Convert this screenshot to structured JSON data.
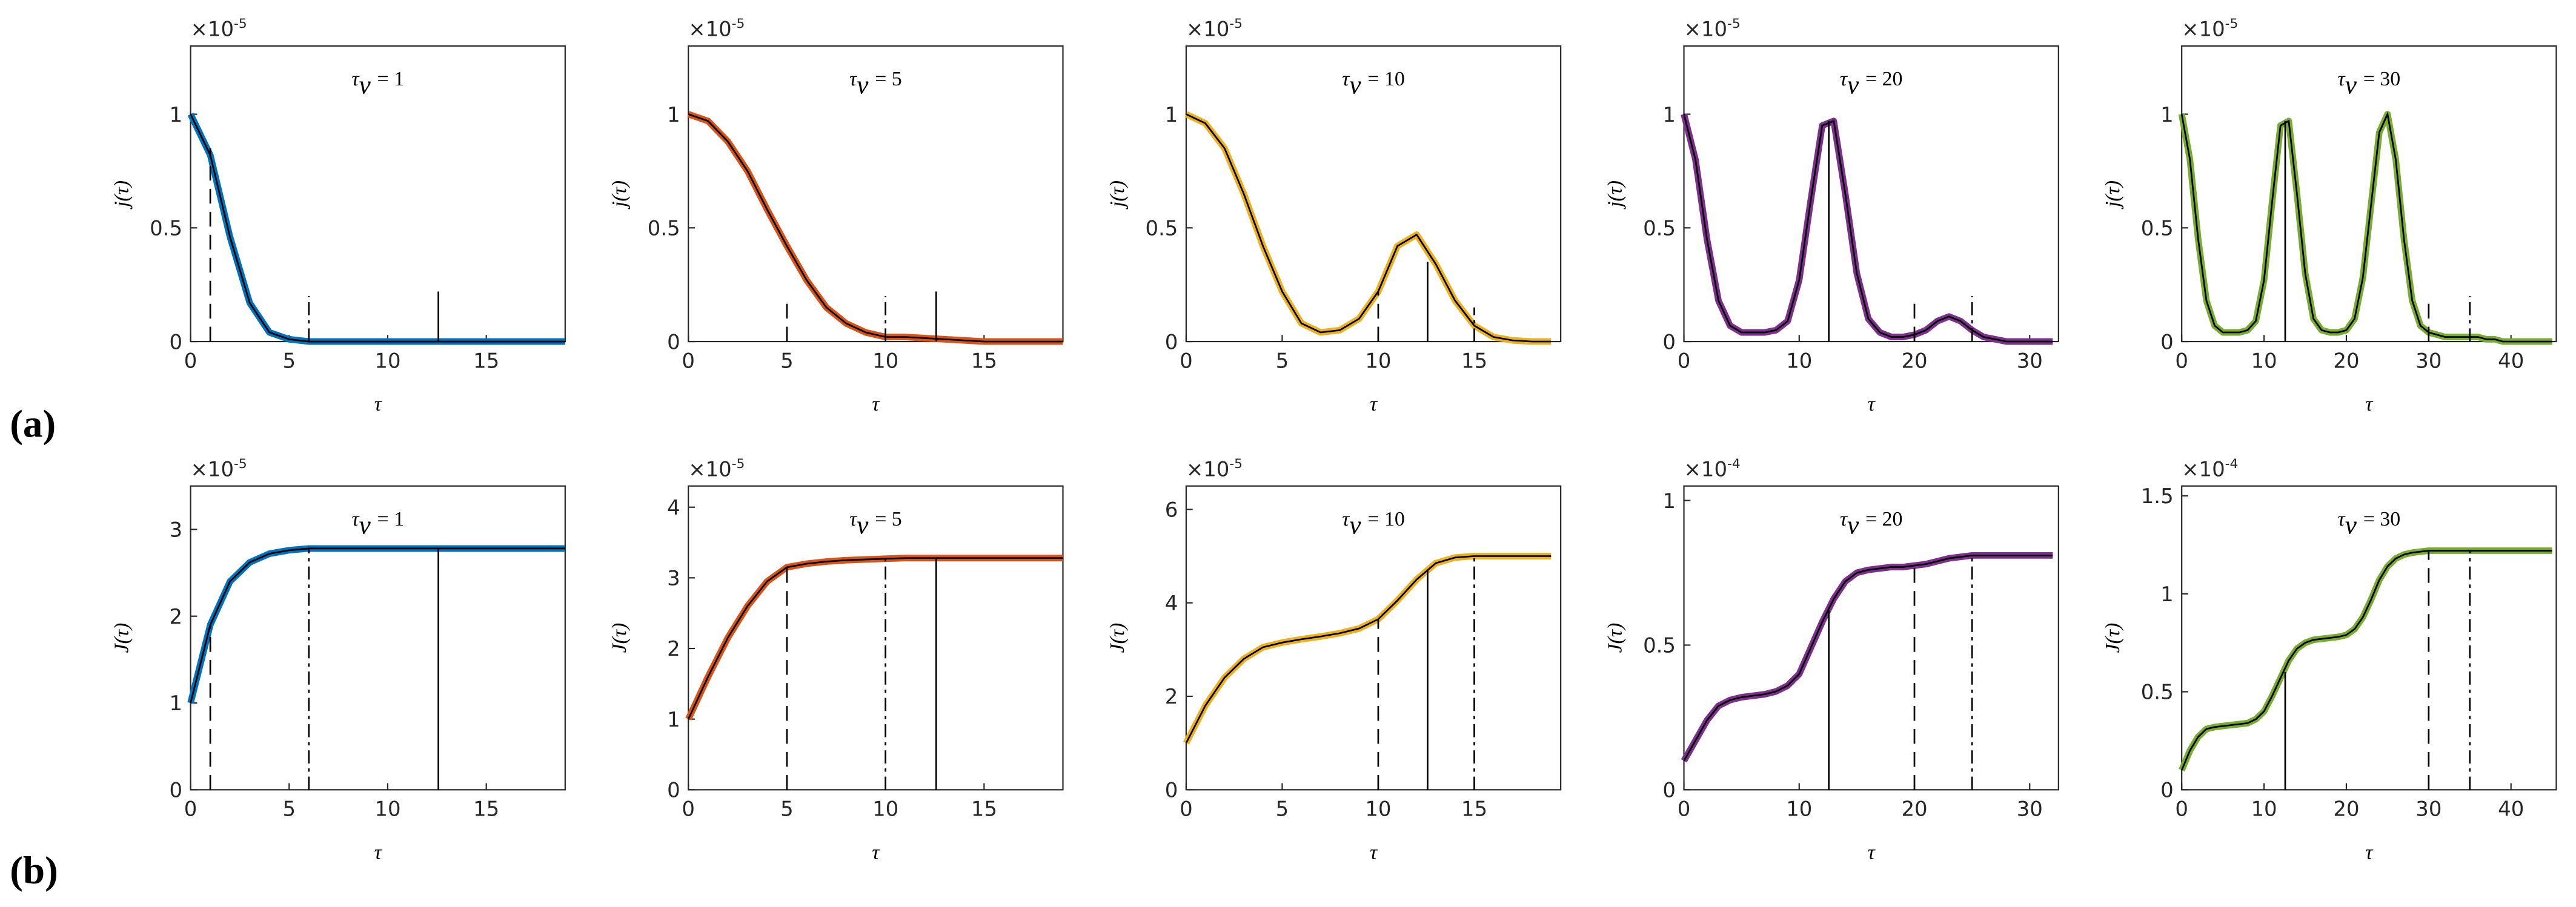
{
  "panel_labels": [
    "(a)",
    "(b)"
  ],
  "chart_data": [
    {
      "type": "line",
      "title_symbol": "τ",
      "title_subscript": "v",
      "title_value": "= 1",
      "xlabel": "τ",
      "ylabel": "j(τ)",
      "y_multiplier": "×10",
      "y_exponent": "-5",
      "xlim": [
        0,
        19
      ],
      "xticks": [
        0,
        5,
        10,
        15
      ],
      "ylim": [
        0,
        1.3
      ],
      "yticks": [
        0,
        0.5,
        1
      ],
      "x": [
        0,
        1,
        2,
        3,
        4,
        5,
        6,
        7,
        8,
        9,
        10,
        11,
        12,
        13,
        14,
        15,
        16,
        17,
        18,
        19
      ],
      "series": [
        {
          "color": "#0072bd",
          "outline_color": "#000000",
          "values": [
            1,
            0.82,
            0.46,
            0.17,
            0.04,
            0.01,
            0,
            0,
            0,
            0,
            0,
            0,
            0,
            0,
            0,
            0,
            0,
            0,
            0,
            0
          ]
        }
      ],
      "markers": [
        {
          "x": 1,
          "top": 0.85,
          "style": "dashed"
        },
        {
          "x": 6,
          "top": 0.2,
          "style": "dashdot"
        },
        {
          "x": 12.57,
          "top": 0.22,
          "style": "solid"
        }
      ]
    },
    {
      "type": "line",
      "title_symbol": "τ",
      "title_subscript": "v",
      "title_value": "= 5",
      "xlabel": "τ",
      "ylabel": "j(τ)",
      "y_multiplier": "×10",
      "y_exponent": "-5",
      "xlim": [
        0,
        19
      ],
      "xticks": [
        0,
        5,
        10,
        15
      ],
      "ylim": [
        0,
        1.3
      ],
      "yticks": [
        0,
        0.5,
        1
      ],
      "x": [
        0,
        1,
        2,
        3,
        4,
        5,
        6,
        7,
        8,
        9,
        10,
        11,
        12,
        13,
        14,
        15,
        16,
        17,
        18,
        19
      ],
      "series": [
        {
          "color": "#d95319",
          "outline_color": "#000000",
          "values": [
            1,
            0.97,
            0.88,
            0.75,
            0.58,
            0.42,
            0.27,
            0.15,
            0.08,
            0.04,
            0.02,
            0.02,
            0.015,
            0.01,
            0.005,
            0,
            0,
            0,
            0,
            0
          ]
        }
      ],
      "markers": [
        {
          "x": 5,
          "top": 0.2,
          "style": "dashed"
        },
        {
          "x": 10,
          "top": 0.2,
          "style": "dashdot"
        },
        {
          "x": 12.57,
          "top": 0.22,
          "style": "solid"
        }
      ]
    },
    {
      "type": "line",
      "title_symbol": "τ",
      "title_subscript": "v",
      "title_value": "= 10",
      "xlabel": "τ",
      "ylabel": "j(τ)",
      "y_multiplier": "×10",
      "y_exponent": "-5",
      "xlim": [
        0,
        19.5
      ],
      "xticks": [
        0,
        5,
        10,
        15
      ],
      "ylim": [
        0,
        1.3
      ],
      "yticks": [
        0,
        0.5,
        1
      ],
      "x": [
        0,
        1,
        2,
        3,
        4,
        5,
        6,
        7,
        8,
        9,
        10,
        11,
        12,
        13,
        14,
        15,
        16,
        17,
        18,
        19
      ],
      "series": [
        {
          "color": "#edb120",
          "outline_color": "#000000",
          "values": [
            1,
            0.96,
            0.85,
            0.65,
            0.42,
            0.22,
            0.08,
            0.04,
            0.05,
            0.1,
            0.22,
            0.42,
            0.47,
            0.34,
            0.18,
            0.07,
            0.02,
            0.005,
            0,
            0
          ]
        }
      ],
      "markers": [
        {
          "x": 10,
          "top": 0.22,
          "style": "dashed"
        },
        {
          "x": 12.57,
          "top": 0.35,
          "style": "solid"
        },
        {
          "x": 15,
          "top": 0.15,
          "style": "dashdot"
        }
      ]
    },
    {
      "type": "line",
      "title_symbol": "τ",
      "title_subscript": "v",
      "title_value": "= 20",
      "xlabel": "τ",
      "ylabel": "j(τ)",
      "y_multiplier": "×10",
      "y_exponent": "-5",
      "xlim": [
        0,
        32.5
      ],
      "xticks": [
        0,
        10,
        20,
        30
      ],
      "ylim": [
        0,
        1.3
      ],
      "yticks": [
        0,
        0.5,
        1
      ],
      "x": [
        0,
        1,
        2,
        3,
        4,
        5,
        6,
        7,
        8,
        9,
        10,
        11,
        12,
        13,
        14,
        15,
        16,
        17,
        18,
        19,
        20,
        21,
        22,
        23,
        24,
        25,
        26,
        27,
        28,
        29,
        30,
        31,
        32
      ],
      "series": [
        {
          "color": "#7e2f8e",
          "outline_color": "#000000",
          "values": [
            1,
            0.8,
            0.45,
            0.18,
            0.07,
            0.04,
            0.04,
            0.04,
            0.05,
            0.09,
            0.27,
            0.62,
            0.95,
            0.97,
            0.65,
            0.3,
            0.1,
            0.04,
            0.02,
            0.02,
            0.03,
            0.05,
            0.09,
            0.11,
            0.09,
            0.05,
            0.02,
            0.01,
            0,
            0,
            0,
            0,
            0
          ]
        }
      ],
      "markers": [
        {
          "x": 12.57,
          "top": 0.97,
          "style": "solid"
        },
        {
          "x": 20,
          "top": 0.2,
          "style": "dashed"
        },
        {
          "x": 25,
          "top": 0.2,
          "style": "dashdot"
        }
      ]
    },
    {
      "type": "line",
      "title_symbol": "τ",
      "title_subscript": "v",
      "title_value": "= 30",
      "xlabel": "τ",
      "ylabel": "j(τ)",
      "y_multiplier": "×10",
      "y_exponent": "-5",
      "xlim": [
        0,
        45.5
      ],
      "xticks": [
        0,
        10,
        20,
        30,
        40
      ],
      "ylim": [
        0,
        1.3
      ],
      "yticks": [
        0,
        0.5,
        1
      ],
      "x": [
        0,
        1,
        2,
        3,
        4,
        5,
        6,
        7,
        8,
        9,
        10,
        11,
        12,
        13,
        14,
        15,
        16,
        17,
        18,
        19,
        20,
        21,
        22,
        23,
        24,
        25,
        26,
        27,
        28,
        29,
        30,
        31,
        32,
        33,
        34,
        35,
        36,
        37,
        38,
        39,
        40,
        41,
        42,
        43,
        44,
        45
      ],
      "series": [
        {
          "color": "#77ac30",
          "outline_color": "#000000",
          "values": [
            1,
            0.8,
            0.45,
            0.18,
            0.07,
            0.04,
            0.04,
            0.04,
            0.05,
            0.09,
            0.27,
            0.62,
            0.95,
            0.97,
            0.65,
            0.3,
            0.1,
            0.05,
            0.04,
            0.04,
            0.05,
            0.1,
            0.28,
            0.6,
            0.92,
            1,
            0.8,
            0.45,
            0.18,
            0.07,
            0.04,
            0.03,
            0.02,
            0.02,
            0.02,
            0.02,
            0.02,
            0.01,
            0.01,
            0,
            0,
            0,
            0,
            0,
            0,
            0
          ]
        }
      ],
      "markers": [
        {
          "x": 12.57,
          "top": 0.97,
          "style": "solid"
        },
        {
          "x": 30,
          "top": 0.2,
          "style": "dashed"
        },
        {
          "x": 35,
          "top": 0.2,
          "style": "dashdot"
        }
      ]
    },
    {
      "type": "line",
      "title_symbol": "τ",
      "title_subscript": "v",
      "title_value": "= 1",
      "xlabel": "τ",
      "ylabel": "J(τ)",
      "y_multiplier": "×10",
      "y_exponent": "-5",
      "xlim": [
        0,
        19
      ],
      "xticks": [
        0,
        5,
        10,
        15
      ],
      "ylim": [
        0,
        3.5
      ],
      "yticks": [
        0,
        1,
        2,
        3
      ],
      "x": [
        0,
        1,
        2,
        3,
        4,
        5,
        6,
        7,
        8,
        9,
        10,
        11,
        12,
        13,
        14,
        15,
        16,
        17,
        18,
        19
      ],
      "series": [
        {
          "color": "#0072bd",
          "outline_color": "#000000",
          "values": [
            1,
            1.9,
            2.4,
            2.62,
            2.72,
            2.76,
            2.78,
            2.78,
            2.78,
            2.78,
            2.78,
            2.78,
            2.78,
            2.78,
            2.78,
            2.78,
            2.78,
            2.78,
            2.78,
            2.78
          ]
        }
      ],
      "markers": [
        {
          "x": 1,
          "top": 1.9,
          "style": "dashed"
        },
        {
          "x": 6,
          "top": 2.78,
          "style": "dashdot"
        },
        {
          "x": 12.57,
          "top": 2.78,
          "style": "solid"
        }
      ]
    },
    {
      "type": "line",
      "title_symbol": "τ",
      "title_subscript": "v",
      "title_value": "= 5",
      "xlabel": "τ",
      "ylabel": "J(τ)",
      "y_multiplier": "×10",
      "y_exponent": "-5",
      "xlim": [
        0,
        19
      ],
      "xticks": [
        0,
        5,
        10,
        15
      ],
      "ylim": [
        0,
        4.3
      ],
      "yticks": [
        0,
        1,
        2,
        3,
        4
      ],
      "x": [
        0,
        1,
        2,
        3,
        4,
        5,
        6,
        7,
        8,
        9,
        10,
        11,
        12,
        13,
        14,
        15,
        16,
        17,
        18,
        19
      ],
      "series": [
        {
          "color": "#d95319",
          "outline_color": "#000000",
          "values": [
            1,
            1.6,
            2.15,
            2.6,
            2.95,
            3.15,
            3.2,
            3.23,
            3.25,
            3.26,
            3.27,
            3.28,
            3.28,
            3.28,
            3.28,
            3.28,
            3.28,
            3.28,
            3.28,
            3.28
          ]
        }
      ],
      "markers": [
        {
          "x": 5,
          "top": 3.15,
          "style": "dashed"
        },
        {
          "x": 10,
          "top": 3.27,
          "style": "dashdot"
        },
        {
          "x": 12.57,
          "top": 3.28,
          "style": "solid"
        }
      ]
    },
    {
      "type": "line",
      "title_symbol": "τ",
      "title_subscript": "v",
      "title_value": "= 10",
      "xlabel": "τ",
      "ylabel": "J(τ)",
      "y_multiplier": "×10",
      "y_exponent": "-5",
      "xlim": [
        0,
        19.5
      ],
      "xticks": [
        0,
        5,
        10,
        15
      ],
      "ylim": [
        0,
        6.5
      ],
      "yticks": [
        0,
        2,
        4,
        6
      ],
      "x": [
        0,
        1,
        2,
        3,
        4,
        5,
        6,
        7,
        8,
        9,
        10,
        11,
        12,
        13,
        14,
        15,
        16,
        17,
        18,
        19
      ],
      "series": [
        {
          "color": "#edb120",
          "outline_color": "#000000",
          "values": [
            1,
            1.8,
            2.4,
            2.8,
            3.05,
            3.15,
            3.22,
            3.28,
            3.35,
            3.45,
            3.65,
            4.05,
            4.5,
            4.85,
            4.97,
            5,
            5,
            5,
            5,
            5
          ]
        }
      ],
      "markers": [
        {
          "x": 10,
          "top": 3.65,
          "style": "dashed"
        },
        {
          "x": 12.57,
          "top": 4.7,
          "style": "solid"
        },
        {
          "x": 15,
          "top": 5,
          "style": "dashdot"
        }
      ]
    },
    {
      "type": "line",
      "title_symbol": "τ",
      "title_subscript": "v",
      "title_value": "= 20",
      "xlabel": "τ",
      "ylabel": "J(τ)",
      "y_multiplier": "×10",
      "y_exponent": "-4",
      "xlim": [
        0,
        32.5
      ],
      "xticks": [
        0,
        10,
        20,
        30
      ],
      "ylim": [
        0,
        1.05
      ],
      "yticks": [
        0,
        0.5,
        1
      ],
      "x": [
        0,
        1,
        2,
        3,
        4,
        5,
        6,
        7,
        8,
        9,
        10,
        11,
        12,
        13,
        14,
        15,
        16,
        17,
        18,
        19,
        20,
        21,
        22,
        23,
        24,
        25,
        26,
        27,
        28,
        29,
        30,
        31,
        32
      ],
      "series": [
        {
          "color": "#7e2f8e",
          "outline_color": "#000000",
          "values": [
            0.1,
            0.17,
            0.24,
            0.29,
            0.31,
            0.32,
            0.325,
            0.33,
            0.34,
            0.36,
            0.4,
            0.49,
            0.58,
            0.66,
            0.72,
            0.75,
            0.76,
            0.765,
            0.77,
            0.77,
            0.775,
            0.78,
            0.79,
            0.8,
            0.805,
            0.81,
            0.81,
            0.81,
            0.81,
            0.81,
            0.81,
            0.81,
            0.81
          ]
        }
      ],
      "markers": [
        {
          "x": 12.57,
          "top": 0.62,
          "style": "solid"
        },
        {
          "x": 20,
          "top": 0.775,
          "style": "dashed"
        },
        {
          "x": 25,
          "top": 0.81,
          "style": "dashdot"
        }
      ]
    },
    {
      "type": "line",
      "title_symbol": "τ",
      "title_subscript": "v",
      "title_value": "= 30",
      "xlabel": "τ",
      "ylabel": "J(τ)",
      "y_multiplier": "×10",
      "y_exponent": "-4",
      "xlim": [
        0,
        45.5
      ],
      "xticks": [
        0,
        10,
        20,
        30,
        40
      ],
      "ylim": [
        0,
        1.55
      ],
      "yticks": [
        0,
        0.5,
        1,
        1.5
      ],
      "x": [
        0,
        1,
        2,
        3,
        4,
        5,
        6,
        7,
        8,
        9,
        10,
        11,
        12,
        13,
        14,
        15,
        16,
        17,
        18,
        19,
        20,
        21,
        22,
        23,
        24,
        25,
        26,
        27,
        28,
        29,
        30,
        31,
        32,
        33,
        34,
        35,
        36,
        37,
        38,
        39,
        40,
        41,
        42,
        43,
        44,
        45
      ],
      "series": [
        {
          "color": "#77ac30",
          "outline_color": "#000000",
          "values": [
            0.1,
            0.2,
            0.27,
            0.31,
            0.32,
            0.325,
            0.33,
            0.335,
            0.34,
            0.36,
            0.4,
            0.48,
            0.57,
            0.66,
            0.72,
            0.75,
            0.765,
            0.77,
            0.775,
            0.78,
            0.79,
            0.82,
            0.88,
            0.97,
            1.07,
            1.14,
            1.18,
            1.2,
            1.21,
            1.215,
            1.22,
            1.22,
            1.22,
            1.22,
            1.22,
            1.22,
            1.22,
            1.22,
            1.22,
            1.22,
            1.22,
            1.22,
            1.22,
            1.22,
            1.22,
            1.22
          ]
        }
      ],
      "markers": [
        {
          "x": 12.57,
          "top": 0.6,
          "style": "solid"
        },
        {
          "x": 30,
          "top": 1.22,
          "style": "dashed"
        },
        {
          "x": 35,
          "top": 1.22,
          "style": "dashdot"
        }
      ]
    }
  ]
}
